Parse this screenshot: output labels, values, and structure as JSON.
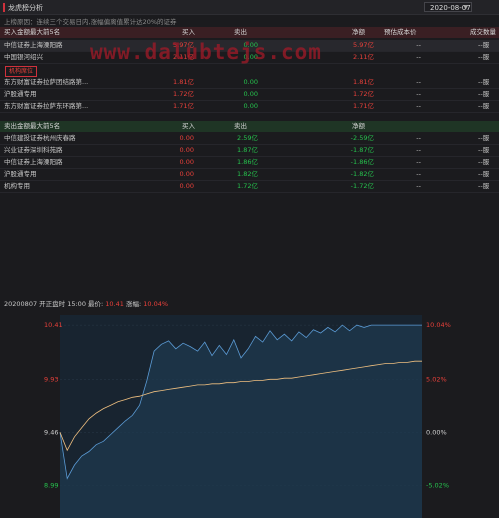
{
  "window": {
    "title": "龙虎榜分析",
    "date": "2020-08-07"
  },
  "reason": "上榜原因：连续三个交易日内,涨幅偏离值累计达20%的证券",
  "watermark": "www.dalubtejs.com",
  "buy_header": {
    "name": "买入金额最大前5名",
    "buy": "买入",
    "sell": "卖出",
    "net": "净额",
    "est": "预估成本价",
    "extra": "成交数量"
  },
  "buy_rows": [
    {
      "name": "中信证券上海溧阳路",
      "buy": "5.97亿",
      "sell": "0.00",
      "net": "5.97亿",
      "est": "--",
      "dash": "--服"
    },
    {
      "name": "中国银河绍兴",
      "buy": "2.11亿",
      "sell": "0.00",
      "net": "2.11亿",
      "est": "--",
      "dash": "--服"
    },
    {
      "name": "东方财富证券拉萨团结路第...",
      "buy": "1.81亿",
      "sell": "0.00",
      "net": "1.81亿",
      "est": "--",
      "dash": "--服"
    },
    {
      "name": "沪股通专用",
      "buy": "1.72亿",
      "sell": "0.00",
      "net": "1.72亿",
      "est": "--",
      "dash": "--服"
    },
    {
      "name": "东方财富证券拉萨东环路第...",
      "buy": "1.71亿",
      "sell": "0.00",
      "net": "1.71亿",
      "est": "--",
      "dash": "--服"
    }
  ],
  "tag": "机构席位",
  "sell_header": {
    "name": "卖出金额最大前5名",
    "buy": "买入",
    "sell": "卖出",
    "net": "净额"
  },
  "sell_rows": [
    {
      "name": "中信建投证券杭州庆春路",
      "buy": "0.00",
      "sell": "2.59亿",
      "net": "-2.59亿",
      "est": "--",
      "dash": "--服"
    },
    {
      "name": "兴业证券深圳科苑路",
      "buy": "0.00",
      "sell": "1.87亿",
      "net": "-1.87亿",
      "est": "--",
      "dash": "--服"
    },
    {
      "name": "中信证券上海溧阳路",
      "buy": "0.00",
      "sell": "1.86亿",
      "net": "-1.86亿",
      "est": "--",
      "dash": "--服"
    },
    {
      "name": "沪股通专用",
      "buy": "0.00",
      "sell": "1.82亿",
      "net": "-1.82亿",
      "est": "--",
      "dash": "--服"
    },
    {
      "name": "机构专用",
      "buy": "0.00",
      "sell": "1.72亿",
      "net": "-1.72亿",
      "est": "--",
      "dash": "--服"
    }
  ],
  "chart_info": {
    "label": "20200807 开正盘时 15:00 最价:",
    "price": "10.41",
    "chg_label": "涨幅:",
    "chg": "10.04%"
  },
  "chart_data": {
    "type": "line",
    "y_left_ticks": [
      "10.41",
      "9.93",
      "9.46",
      "8.99"
    ],
    "y_right_ticks": [
      "10.04%",
      "5.02%",
      "0.00%",
      "-5.02%"
    ],
    "series": [
      {
        "values": [
          9.46,
          9.05,
          9.17,
          9.25,
          9.29,
          9.35,
          9.38,
          9.44,
          9.5,
          9.56,
          9.61,
          9.7,
          9.92,
          10.18,
          10.24,
          10.27,
          10.2,
          10.25,
          10.22,
          10.18,
          10.26,
          10.14,
          10.23,
          10.15,
          10.28,
          10.12,
          10.2,
          10.31,
          10.26,
          10.36,
          10.28,
          10.33,
          10.27,
          10.35,
          10.3,
          10.37,
          10.34,
          10.39,
          10.35,
          10.41,
          10.36,
          10.41,
          10.39,
          10.41,
          10.41,
          10.41,
          10.41,
          10.41,
          10.41,
          10.41,
          10.41
        ]
      },
      {
        "values": [
          9.46,
          9.3,
          9.42,
          9.5,
          9.58,
          9.63,
          9.67,
          9.7,
          9.73,
          9.75,
          9.77,
          9.78,
          9.8,
          9.82,
          9.83,
          9.84,
          9.85,
          9.86,
          9.87,
          9.88,
          9.88,
          9.89,
          9.89,
          9.9,
          9.9,
          9.91,
          9.91,
          9.92,
          9.92,
          9.93,
          9.93,
          9.94,
          9.94,
          9.95,
          9.96,
          9.97,
          9.98,
          9.99,
          10.0,
          10.01,
          10.02,
          10.03,
          10.04,
          10.05,
          10.06,
          10.07,
          10.07,
          10.08,
          10.08,
          10.09,
          10.09
        ]
      }
    ],
    "ylim": [
      8.7,
      10.5
    ],
    "colors": {
      "price": "#5b9bd5",
      "avg": "#f0c080",
      "fill": "#1e3a50"
    }
  }
}
